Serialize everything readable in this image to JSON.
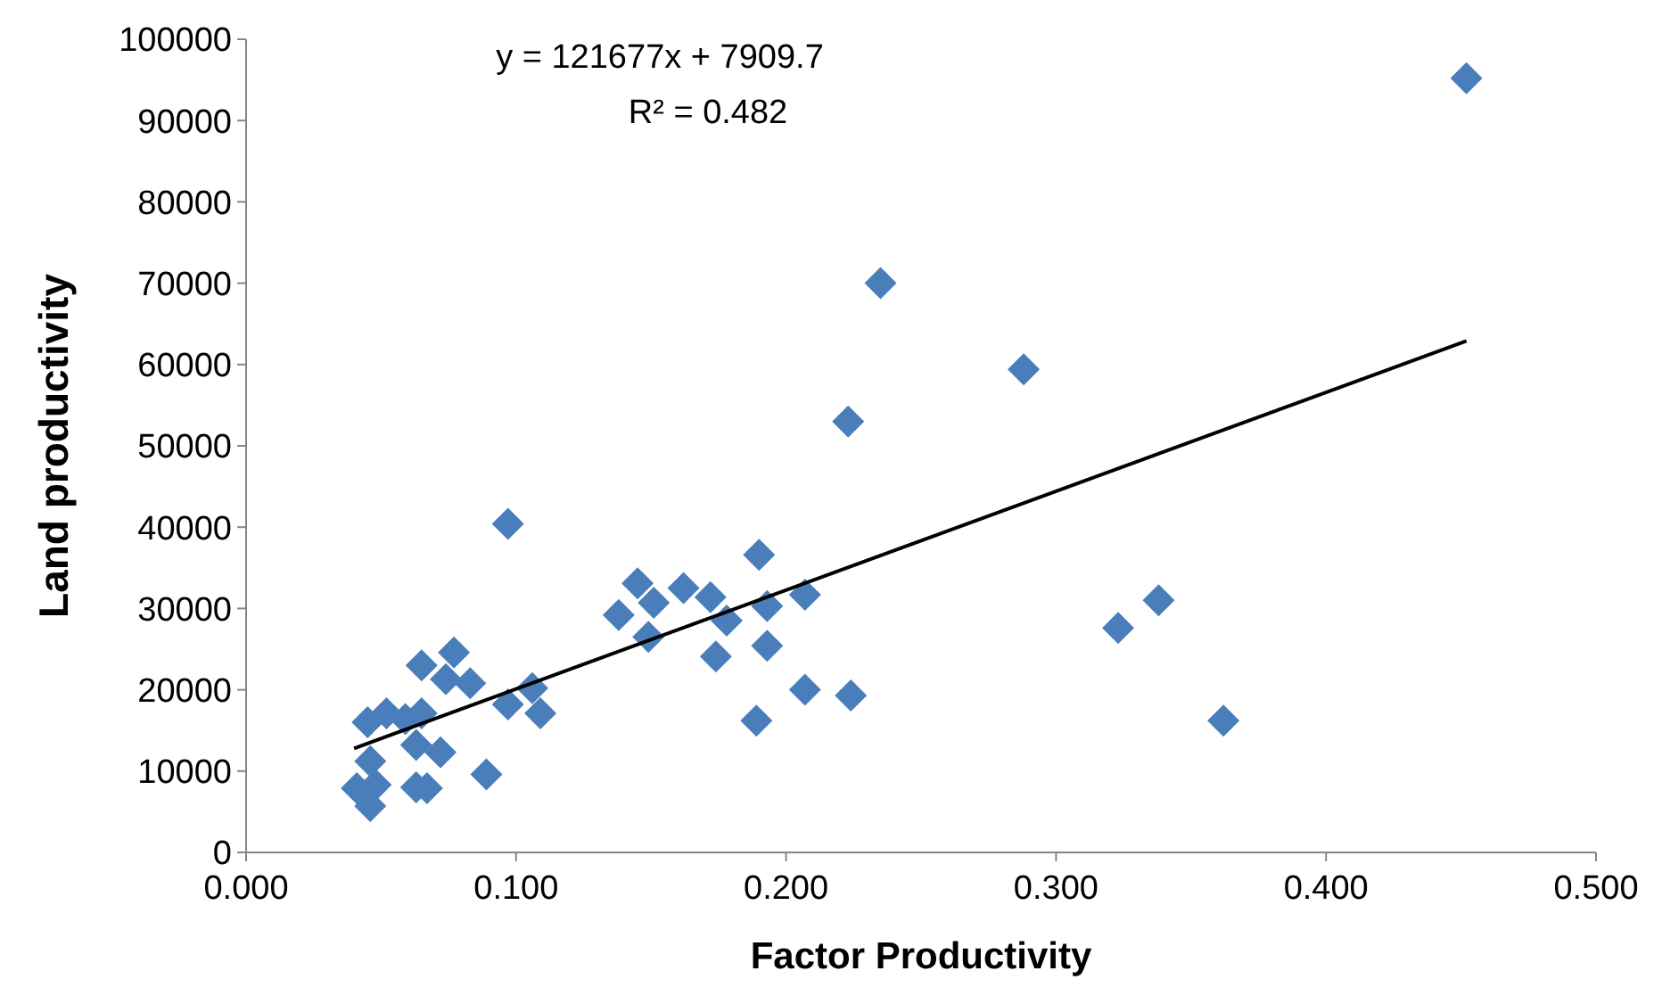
{
  "chart_data": {
    "type": "scatter",
    "xlabel": "Factor Productivity",
    "ylabel": "Land productivity",
    "annotations": [
      "y = 121677x + 7909.7",
      "R² = 0.482"
    ],
    "xlim": [
      0,
      0.5
    ],
    "xticks": [
      {
        "value": 0,
        "label": "0.000"
      },
      {
        "value": 0.1,
        "label": "0.100"
      },
      {
        "value": 0.2,
        "label": "0.200"
      },
      {
        "value": 0.3,
        "label": "0.300"
      },
      {
        "value": 0.4,
        "label": "0.400"
      },
      {
        "value": 0.5,
        "label": "0.500"
      }
    ],
    "ylim": [
      0,
      100000
    ],
    "yticks": [
      0,
      10000,
      20000,
      30000,
      40000,
      50000,
      60000,
      70000,
      80000,
      90000,
      100000
    ],
    "grid": false,
    "marker": "diamond",
    "series": [
      {
        "type": "scatter",
        "color": "#4a7ebb",
        "x": [
          0.452,
          0.235,
          0.288,
          0.223,
          0.097,
          0.19,
          0.207,
          0.323,
          0.338,
          0.362,
          0.145,
          0.151,
          0.162,
          0.172,
          0.178,
          0.138,
          0.149,
          0.193,
          0.174,
          0.193,
          0.207,
          0.189,
          0.224,
          0.065,
          0.077,
          0.074,
          0.083,
          0.045,
          0.052,
          0.059,
          0.065,
          0.063,
          0.072,
          0.097,
          0.106,
          0.109,
          0.046,
          0.041,
          0.048,
          0.046,
          0.063,
          0.067,
          0.089
        ],
        "values": [
          95200,
          70000,
          59400,
          53000,
          40400,
          36600,
          31700,
          27600,
          31000,
          16200,
          33100,
          30700,
          32500,
          31400,
          28500,
          29200,
          26500,
          30300,
          24100,
          25400,
          20000,
          16200,
          19300,
          23000,
          24600,
          21300,
          20800,
          16000,
          17100,
          16400,
          17100,
          13200,
          12300,
          18200,
          20200,
          17100,
          11200,
          7900,
          8300,
          5700,
          8000,
          7900,
          9600
        ]
      },
      {
        "type": "line",
        "color": "#000000",
        "x": [
          0.04,
          0.452
        ],
        "values": [
          12800,
          62900
        ],
        "marker": "none",
        "line_style": "solid"
      }
    ]
  }
}
